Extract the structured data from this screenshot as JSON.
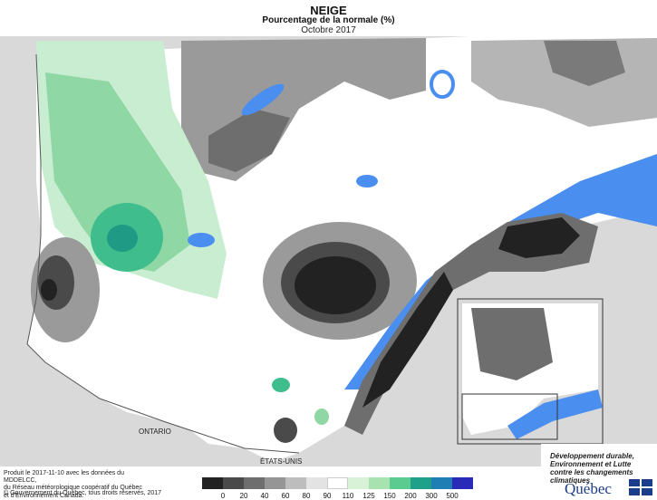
{
  "header": {
    "title": "NEIGE",
    "subtitle": "Pourcentage de la normale (%)",
    "period": "Octobre 2017"
  },
  "map_labels": {
    "ontario": "ONTARIO",
    "etats_unis": "ÉTATS-UNIS"
  },
  "footer": {
    "credits_line1": "Produit le 2017-11-10 avec les données du MDDELCC,",
    "credits_line2": "du Réseau météorologique coopératif du Québec",
    "credits_line3": "et d'Environnement Canada.",
    "copyright": "© Gouvernement du Québec, tous droits réservés, 2017"
  },
  "legend": {
    "ticks": [
      "0",
      "20",
      "40",
      "60",
      "80",
      "90",
      "110",
      "125",
      "150",
      "200",
      "300",
      "500"
    ],
    "colors": [
      "#222222",
      "#4a4a4a",
      "#6e6e6e",
      "#959595",
      "#bdbdbd",
      "#e3e3e3",
      "#ffffff",
      "#d8f2d8",
      "#a8e2b0",
      "#5ccb8f",
      "#1fa08a",
      "#1f7fb5",
      "#2a2ab8"
    ]
  },
  "logo": {
    "line1": "Développement durable,",
    "line2": "Environnement et Lutte",
    "line3": "contre les changements",
    "line4": "climatiques",
    "wordmark": "Québec"
  },
  "colors": {
    "water": "#4a8ef0",
    "land_outside": "#d9d9d9",
    "normal": "#ffffff"
  }
}
